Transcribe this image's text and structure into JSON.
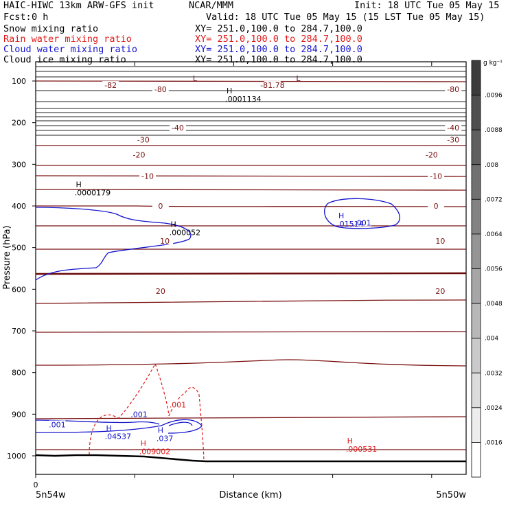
{
  "header": {
    "title_left": "HAIC-HIWC 13km ARW-GFS init",
    "org": "NCAR/MMM",
    "init": "Init: 18 UTC Tue 05 May 15",
    "fcst_label": "Fcst:",
    "fcst_value": "0 h",
    "valid": "Valid: 18 UTC Tue 05 May 15 (15 LST Tue 05 May 15)",
    "fields": [
      {
        "name": "Snow mixing ratio",
        "xy": "XY= 251.0,100.0 to 284.7,100.0",
        "color": "#000000"
      },
      {
        "name": "Rain water mixing ratio",
        "xy": "XY= 251.0,100.0 to 284.7,100.0",
        "color": "#e01818"
      },
      {
        "name": "Cloud water mixing ratio",
        "xy": "XY= 251.0,100.0 to 284.7,100.0",
        "color": "#1414cc"
      },
      {
        "name": "Cloud ice mixing ratio",
        "xy": "XY= 251.0,100.0 to 284.7,100.0",
        "color": "#000000"
      }
    ]
  },
  "chart_data": {
    "type": "contour cross-section",
    "ylabel": "Pressure (hPa)",
    "xlabel": "Distance (km)",
    "x_ticks": [
      "0"
    ],
    "x_start_label": "5n54w",
    "x_end_label": "5n50w",
    "y_ticks": [
      100,
      200,
      300,
      400,
      500,
      600,
      700,
      800,
      900,
      1000
    ],
    "ylim": [
      50,
      1050
    ],
    "temperature_contours": [
      {
        "value": -82,
        "pressure": 108
      },
      {
        "value": -80,
        "pressure": 118
      },
      {
        "value": -40,
        "pressure": 212
      },
      {
        "value": -30,
        "pressure": 241
      },
      {
        "value": -20,
        "pressure": 277
      },
      {
        "value": -10,
        "pressure": 328
      },
      {
        "value": 0,
        "pressure": 400
      },
      {
        "value": 10,
        "pressure": 483
      },
      {
        "value": 20,
        "pressure": 604
      }
    ],
    "contour_labels": [
      {
        "text": "-82",
        "x": 0.174,
        "p": 110,
        "kind": "temp"
      },
      {
        "text": "-80",
        "x": 0.29,
        "p": 120,
        "kind": "temp"
      },
      {
        "text": "-81.78",
        "x": 0.55,
        "p": 110,
        "kind": "temp"
      },
      {
        "text": "-80",
        "x": 0.97,
        "p": 120,
        "kind": "temp"
      },
      {
        "text": "-40",
        "x": 0.33,
        "p": 212,
        "kind": "temp"
      },
      {
        "text": "-40",
        "x": 0.97,
        "p": 212,
        "kind": "temp"
      },
      {
        "text": "-30",
        "x": 0.25,
        "p": 241,
        "kind": "temp"
      },
      {
        "text": "-30",
        "x": 0.97,
        "p": 241,
        "kind": "temp"
      },
      {
        "text": "-20",
        "x": 0.24,
        "p": 277,
        "kind": "temp"
      },
      {
        "text": "-20",
        "x": 0.92,
        "p": 277,
        "kind": "temp"
      },
      {
        "text": "-10",
        "x": 0.26,
        "p": 328,
        "kind": "temp"
      },
      {
        "text": "-10",
        "x": 0.93,
        "p": 328,
        "kind": "temp"
      },
      {
        "text": "0",
        "x": 0.29,
        "p": 400,
        "kind": "temp"
      },
      {
        "text": "0",
        "x": 0.93,
        "p": 400,
        "kind": "temp"
      },
      {
        "text": "10",
        "x": 0.3,
        "p": 484,
        "kind": "temp"
      },
      {
        "text": "10",
        "x": 0.94,
        "p": 484,
        "kind": "temp"
      },
      {
        "text": "20",
        "x": 0.29,
        "p": 604,
        "kind": "temp"
      },
      {
        "text": "20",
        "x": 0.94,
        "p": 604,
        "kind": "temp"
      },
      {
        "text": ".001",
        "x": 0.24,
        "p": 900,
        "kind": "cloud"
      },
      {
        "text": ".001",
        "x": 0.05,
        "p": 925,
        "kind": "cloud"
      },
      {
        "text": ".001",
        "x": 0.76,
        "p": 440,
        "kind": "cloud"
      },
      {
        "text": ".001",
        "x": 0.33,
        "p": 877,
        "kind": "rain"
      }
    ],
    "extrema": [
      {
        "mark": "L",
        "value": "",
        "x": 0.37,
        "p": 100
      },
      {
        "mark": "L",
        "value": "",
        "x": 0.61,
        "p": 100
      },
      {
        "mark": "H",
        "value": ".0001134",
        "x": 0.45,
        "p": 130
      },
      {
        "mark": "H",
        "value": ".0000179",
        "x": 0.1,
        "p": 355
      },
      {
        "mark": "H",
        "value": ".000052",
        "x": 0.32,
        "p": 450
      },
      {
        "mark": "H",
        "value": ".01514",
        "x": 0.71,
        "p": 430
      },
      {
        "mark": "H",
        "value": ".04537",
        "x": 0.17,
        "p": 940
      },
      {
        "mark": "H",
        "value": ".037",
        "x": 0.29,
        "p": 945
      },
      {
        "mark": "H",
        "value": ".009002",
        "x": 0.25,
        "p": 976
      },
      {
        "mark": "H",
        "value": ".000531",
        "x": 0.73,
        "p": 970
      }
    ],
    "colorbar": {
      "unit": "g kg⁻¹",
      "ticks": [
        ".0096",
        ".0088",
        ".008",
        ".0072",
        ".0064",
        ".0056",
        ".0048",
        ".004",
        ".0032",
        ".0024",
        ".0016"
      ]
    }
  }
}
